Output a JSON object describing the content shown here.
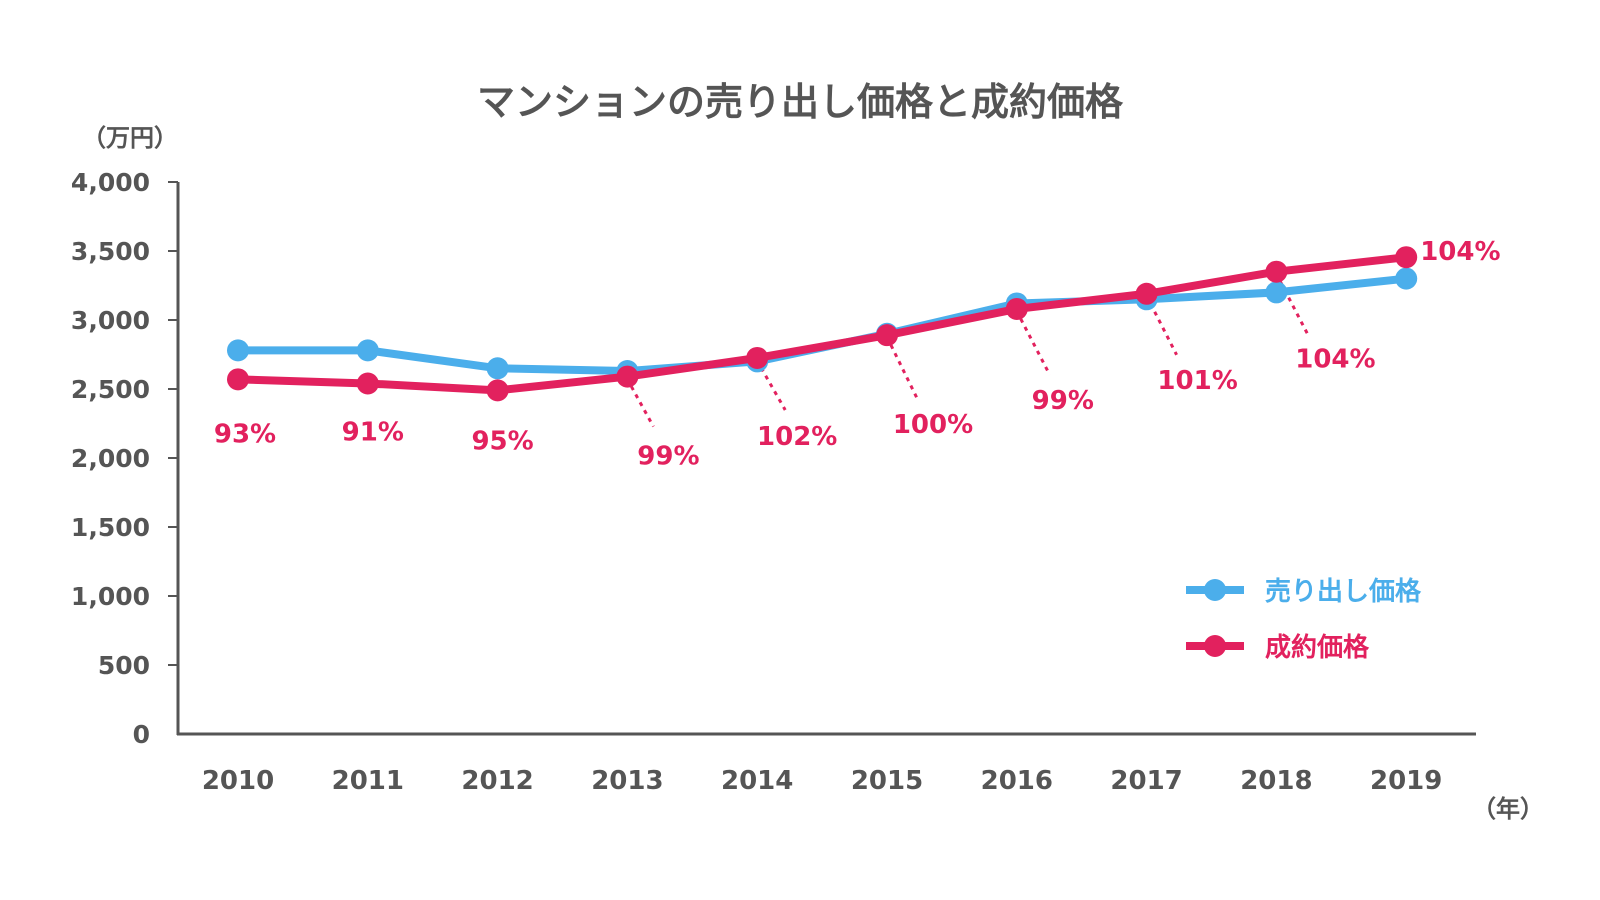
{
  "chart_data": {
    "type": "line",
    "title": "マンションの売り出し価格と成約価格",
    "ylabel": "（万円）",
    "xlabel": "（年）",
    "ylim": [
      0,
      4000
    ],
    "yticks": [
      0,
      500,
      1000,
      1500,
      2000,
      2500,
      3000,
      3500,
      4000
    ],
    "ytick_labels": [
      "0",
      "500",
      "1,000",
      "1,500",
      "2,000",
      "2,500",
      "3,000",
      "3,500",
      "4,000"
    ],
    "categories": [
      "2010",
      "2011",
      "2012",
      "2013",
      "2014",
      "2015",
      "2016",
      "2017",
      "2018",
      "2019"
    ],
    "grid": false,
    "legend_position": "bottom-right",
    "series": [
      {
        "name": "売り出し価格",
        "color": "#4BAEEB",
        "values": [
          2780,
          2780,
          2650,
          2630,
          2700,
          2900,
          3120,
          3150,
          3200,
          3300
        ]
      },
      {
        "name": "成約価格",
        "color": "#E2215E",
        "values": [
          2570,
          2540,
          2490,
          2590,
          2725,
          2890,
          3080,
          3190,
          3350,
          3455
        ]
      }
    ],
    "annotations": {
      "color": "#E2215E",
      "labels": [
        "93%",
        "91%",
        "95%",
        "99%",
        "102%",
        "100%",
        "99%",
        "101%",
        "104%",
        "104%"
      ],
      "leader_lines": [
        false,
        false,
        false,
        true,
        true,
        true,
        true,
        true,
        true,
        false
      ]
    }
  }
}
